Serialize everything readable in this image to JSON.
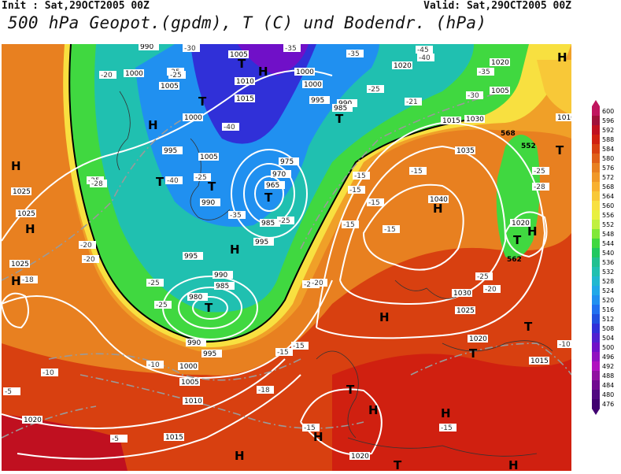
{
  "header": {
    "init": "Init : Sat,29OCT2005 00Z",
    "valid": "Valid: Sat,29OCT2005 00Z",
    "title": "500 hPa Geopot.(gpdm), T (C) und Bodendr. (hPa)"
  },
  "colorbar": {
    "levels": [
      "600",
      "596",
      "592",
      "588",
      "584",
      "580",
      "576",
      "572",
      "568",
      "564",
      "560",
      "556",
      "552",
      "548",
      "544",
      "540",
      "536",
      "532",
      "528",
      "524",
      "520",
      "516",
      "512",
      "508",
      "504",
      "500",
      "496",
      "492",
      "488",
      "484",
      "480",
      "476"
    ],
    "colors": [
      "#c0155e",
      "#a0103a",
      "#c01020",
      "#d02010",
      "#d84010",
      "#e06018",
      "#e88020",
      "#f09828",
      "#f8b030",
      "#f8c838",
      "#f8e040",
      "#e8f040",
      "#c0f040",
      "#80e838",
      "#40d840",
      "#20c860",
      "#20c090",
      "#20c0b0",
      "#20b8d0",
      "#20a8e8",
      "#2090f0",
      "#2070f0",
      "#2050e0",
      "#3030d8",
      "#5020d0",
      "#7010c8",
      "#9010c0",
      "#b010c0",
      "#9010a0",
      "#700890",
      "#500880",
      "#400070"
    ]
  },
  "map": {
    "pressure_labels": [
      "990",
      "1000",
      "1005",
      "1010",
      "1015",
      "1000",
      "995",
      "990",
      "1000",
      "1005",
      "995",
      "985",
      "975",
      "970",
      "965",
      "990",
      "995",
      "985",
      "995",
      "990",
      "985",
      "980",
      "990",
      "995",
      "1000",
      "1005",
      "1010",
      "1015",
      "1020",
      "1020",
      "1025",
      "1025",
      "1025",
      "1030",
      "1035",
      "1040",
      "1020",
      "1030",
      "1025",
      "1020",
      "1015",
      "1020",
      "1020",
      "1005",
      "1000",
      "1005",
      "1010",
      "1015"
    ],
    "temp_labels": [
      "-30",
      "-25",
      "-35",
      "-40",
      "-45",
      "-40",
      "-20",
      "-25",
      "-25",
      "-35",
      "-30",
      "-21",
      "-25",
      "-40",
      "-25",
      "-35",
      "-35",
      "-28",
      "-25",
      "-25",
      "-20",
      "-20",
      "-18",
      "-15",
      "-15",
      "-15",
      "-15",
      "-15",
      "-15",
      "-20",
      "-25",
      "-20",
      "-10",
      "-10",
      "-18",
      "-15",
      "-15",
      "-15",
      "-15",
      "-5",
      "-5",
      "-10",
      "-25",
      "-28",
      "-20",
      "-25"
    ],
    "high_markers": [
      "H",
      "H",
      "H",
      "H",
      "H",
      "H",
      "H",
      "H",
      "H",
      "H",
      "H",
      "H",
      "H",
      "H",
      "H"
    ],
    "low_markers": [
      "T",
      "T",
      "T",
      "T",
      "T",
      "T",
      "T",
      "T",
      "T",
      "T",
      "T",
      "T",
      "T"
    ],
    "contour_568": "568",
    "contour_552": "552",
    "contour_562": "562"
  }
}
